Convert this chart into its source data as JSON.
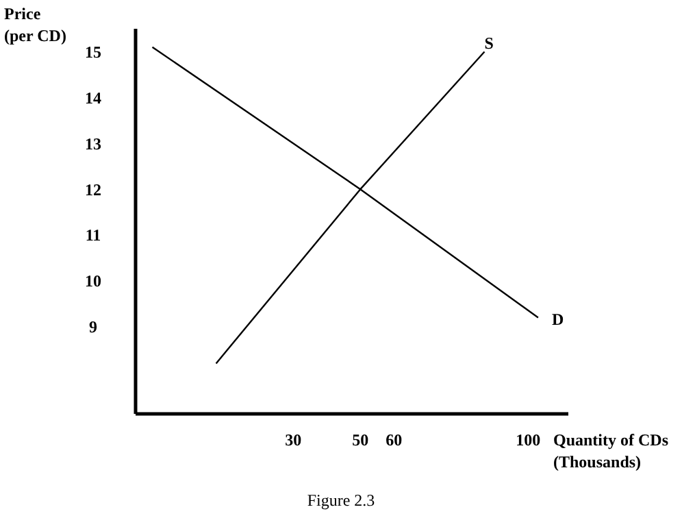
{
  "chart_data": {
    "type": "line",
    "xlabel": "Quantity of CDs (Thousands)",
    "ylabel": "Price (per CD)",
    "annotations": [
      "Figure 2.3"
    ],
    "xlim": [
      -17,
      112
    ],
    "ylim": [
      7.1,
      15.5
    ],
    "xticks": [
      30,
      50,
      60,
      100
    ],
    "yticks": [
      9,
      10,
      11,
      12,
      13,
      14,
      15
    ],
    "grid": false,
    "legend": false,
    "marker": "none",
    "line_style": "solid",
    "series": [
      {
        "name": "S",
        "color": "#000000",
        "x": [
          7,
          50,
          87
        ],
        "values": [
          8.2,
          12,
          15
        ]
      },
      {
        "name": "D",
        "color": "#000000",
        "x": [
          -12,
          50,
          103
        ],
        "values": [
          15.1,
          12,
          9.2
        ]
      }
    ]
  }
}
